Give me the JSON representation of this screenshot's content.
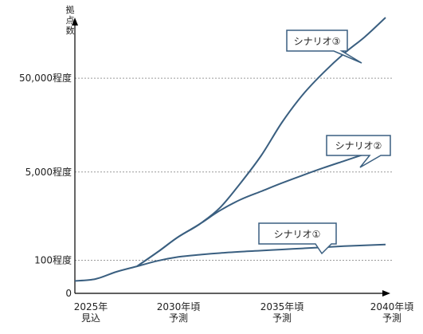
{
  "chart_data": {
    "type": "line",
    "ylabel_chars": [
      "拠",
      "点",
      "数"
    ],
    "y_ticks": [
      {
        "key": "t50000",
        "label": "50,000程度",
        "level": 0.78
      },
      {
        "key": "t5000",
        "label": "5,000程度",
        "level": 0.44
      },
      {
        "key": "t100",
        "label": "100程度",
        "level": 0.12
      },
      {
        "key": "t0",
        "label": "0",
        "level": 0.0
      }
    ],
    "x_ticks": [
      {
        "key": "x2025",
        "lines": [
          "2025年",
          "見込"
        ],
        "year": 2025
      },
      {
        "key": "x2030",
        "lines": [
          "2030年頃",
          "予測"
        ],
        "year": 2030
      },
      {
        "key": "x2035",
        "lines": [
          "2035年頃",
          "予測"
        ],
        "year": 2035
      },
      {
        "key": "x2040",
        "lines": [
          "2040年頃",
          "予測"
        ],
        "year": 2040
      }
    ],
    "series": [
      {
        "key": "s1",
        "name": "シナリオ①",
        "color": "#3a5f80",
        "points": [
          [
            2025,
            0.045
          ],
          [
            2026,
            0.052
          ],
          [
            2027,
            0.078
          ],
          [
            2028,
            0.098
          ],
          [
            2029,
            0.118
          ],
          [
            2030,
            0.132
          ],
          [
            2031,
            0.14
          ],
          [
            2032,
            0.146
          ],
          [
            2033,
            0.151
          ],
          [
            2034,
            0.155
          ],
          [
            2035,
            0.159
          ],
          [
            2036,
            0.163
          ],
          [
            2037,
            0.167
          ],
          [
            2038,
            0.171
          ],
          [
            2039,
            0.174
          ],
          [
            2040,
            0.177
          ]
        ]
      },
      {
        "key": "s2",
        "name": "シナリオ②",
        "color": "#3a5f80",
        "points": [
          [
            2028,
            0.098
          ],
          [
            2029,
            0.15
          ],
          [
            2030,
            0.205
          ],
          [
            2031,
            0.25
          ],
          [
            2032,
            0.3
          ],
          [
            2033,
            0.34
          ],
          [
            2034,
            0.37
          ],
          [
            2035,
            0.4
          ],
          [
            2036,
            0.428
          ],
          [
            2037,
            0.455
          ],
          [
            2038,
            0.48
          ],
          [
            2039,
            0.505
          ],
          [
            2040,
            0.53
          ]
        ]
      },
      {
        "key": "s3",
        "name": "シナリオ③",
        "color": "#3a5f80",
        "points": [
          [
            2028,
            0.098
          ],
          [
            2029,
            0.15
          ],
          [
            2030,
            0.205
          ],
          [
            2031,
            0.25
          ],
          [
            2032,
            0.31
          ],
          [
            2033,
            0.4
          ],
          [
            2034,
            0.5
          ],
          [
            2035,
            0.62
          ],
          [
            2036,
            0.72
          ],
          [
            2037,
            0.8
          ],
          [
            2038,
            0.87
          ],
          [
            2039,
            0.93
          ],
          [
            2040,
            1.0
          ]
        ]
      }
    ],
    "grid": "dotted horizontal at labeled y ticks",
    "colors": {
      "line": "#3a5f80",
      "axis": "#000000",
      "grid": "#9a9a9a",
      "callout_border": "#3a5f80"
    }
  }
}
